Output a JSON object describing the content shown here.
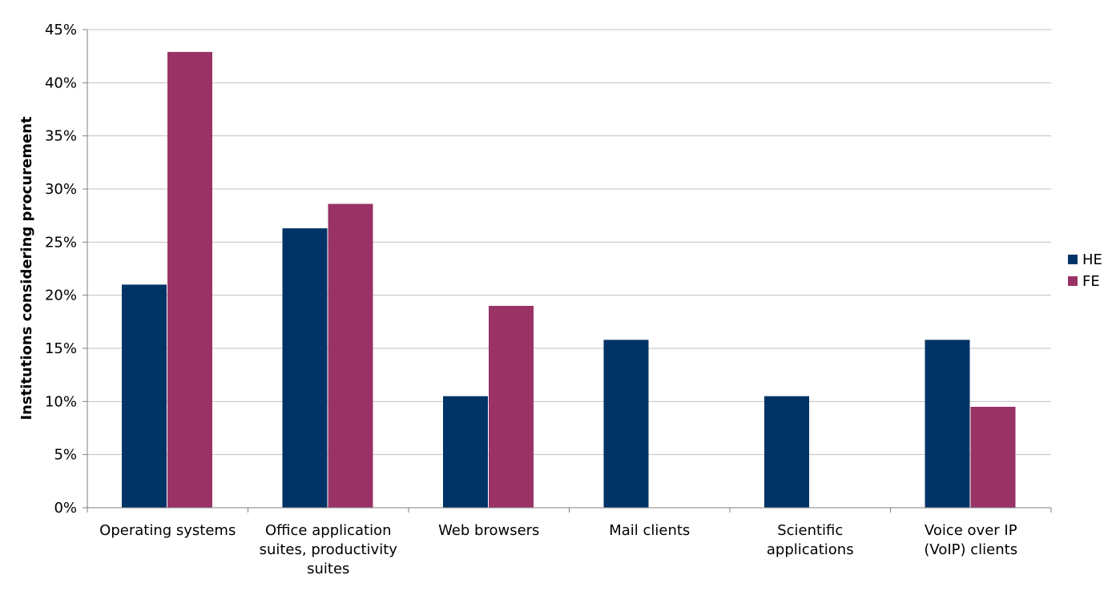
{
  "chart_data": {
    "type": "bar",
    "title": "",
    "xlabel": "",
    "ylabel": "Institutions considering procurement",
    "categories": [
      [
        "Operating systems"
      ],
      [
        "Office application",
        "suites, productivity",
        "suites"
      ],
      [
        "Web browsers"
      ],
      [
        "Mail clients"
      ],
      [
        "Scientific",
        "applications"
      ],
      [
        "Voice over IP",
        "(VoIP) clients"
      ]
    ],
    "series": [
      {
        "name": "HE",
        "color": "#003366",
        "values": [
          21.0,
          26.3,
          10.5,
          15.8,
          10.5,
          15.8
        ]
      },
      {
        "name": "FE",
        "color": "#993366",
        "values": [
          42.9,
          28.6,
          19.0,
          0,
          0,
          9.5
        ]
      }
    ],
    "ylim": [
      0,
      45
    ],
    "yticks": [
      {
        "value": 0,
        "label": "0%"
      },
      {
        "value": 5,
        "label": "5%"
      },
      {
        "value": 10,
        "label": "10%"
      },
      {
        "value": 15,
        "label": "15%"
      },
      {
        "value": 20,
        "label": "20%"
      },
      {
        "value": 25,
        "label": "25%"
      },
      {
        "value": 30,
        "label": "30%"
      },
      {
        "value": 35,
        "label": "35%"
      },
      {
        "value": 40,
        "label": "40%"
      },
      {
        "value": 45,
        "label": "45%"
      }
    ],
    "grid": true,
    "legend_position": "right"
  }
}
